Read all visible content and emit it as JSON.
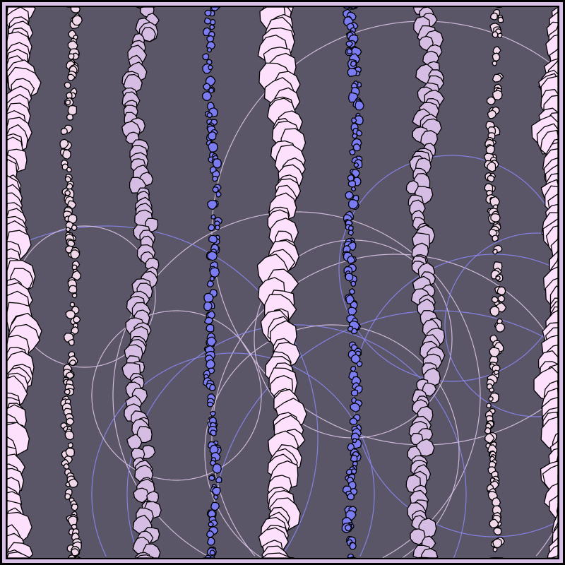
{
  "palette": {
    "background": "#5a5668",
    "frame": "#d8c0e8",
    "outline": "#000000",
    "pebble_pink": "#fde0fb",
    "pebble_lavender": "#d6bde3",
    "pebble_blue": "#7b7bf2",
    "pebble_pale": "#f0d8ea",
    "arc_lavender": "#dcc4e6",
    "arc_blue": "#8a86f0"
  },
  "columns": [
    {
      "kind": "large",
      "color": "pebble_pink"
    },
    {
      "kind": "small",
      "color": "pebble_pale"
    },
    {
      "kind": "medium",
      "color": "pebble_lavender"
    },
    {
      "kind": "small",
      "color": "pebble_blue"
    },
    {
      "kind": "large",
      "color": "pebble_pink"
    },
    {
      "kind": "small",
      "color": "pebble_blue"
    },
    {
      "kind": "medium",
      "color": "pebble_lavender"
    },
    {
      "kind": "small",
      "color": "pebble_pale"
    },
    {
      "kind": "large",
      "color": "pebble_pink"
    }
  ]
}
